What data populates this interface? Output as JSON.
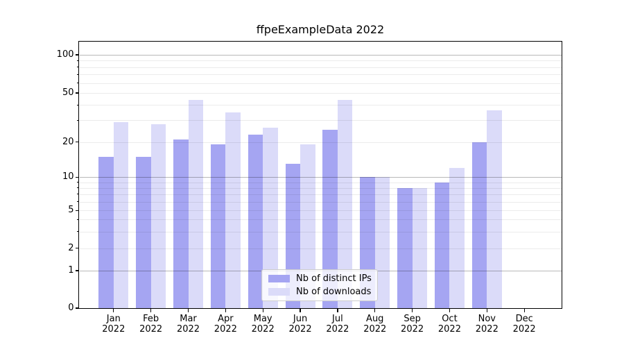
{
  "chart_data": {
    "type": "bar",
    "title": "ffpeExampleData 2022",
    "categories": [
      "Jan 2022",
      "Feb 2022",
      "Mar 2022",
      "Apr 2022",
      "May 2022",
      "Jun 2022",
      "Jul 2022",
      "Aug 2022",
      "Sep 2022",
      "Oct 2022",
      "Nov 2022",
      "Dec 2022"
    ],
    "series": [
      {
        "name": "Nb of distinct IPs",
        "color": "#a5a5f2",
        "values": [
          15,
          15,
          21,
          19,
          23,
          13,
          25,
          10,
          8,
          9,
          20,
          0
        ]
      },
      {
        "name": "Nb of downloads",
        "color": "#dbdbf9",
        "values": [
          29,
          28,
          44,
          35,
          26,
          19,
          44,
          10,
          8,
          12,
          36,
          0
        ]
      }
    ],
    "xlabel": "",
    "ylabel": "",
    "yscale": "log-like with 0 baseline",
    "ytick_values": [
      0,
      1,
      2,
      5,
      10,
      20,
      50,
      100
    ],
    "ytick_labels": [
      "0",
      "1",
      "2",
      "5",
      "10",
      "20",
      "50",
      "100"
    ],
    "minor_gridline_values": [
      2,
      3,
      4,
      5,
      6,
      7,
      8,
      9,
      20,
      30,
      40,
      50,
      60,
      70,
      80,
      90
    ],
    "major_gridline_values": [
      1,
      10,
      100
    ],
    "ylim": [
      0,
      130
    ],
    "grid": "horizontal",
    "legend_position": "lower center"
  }
}
